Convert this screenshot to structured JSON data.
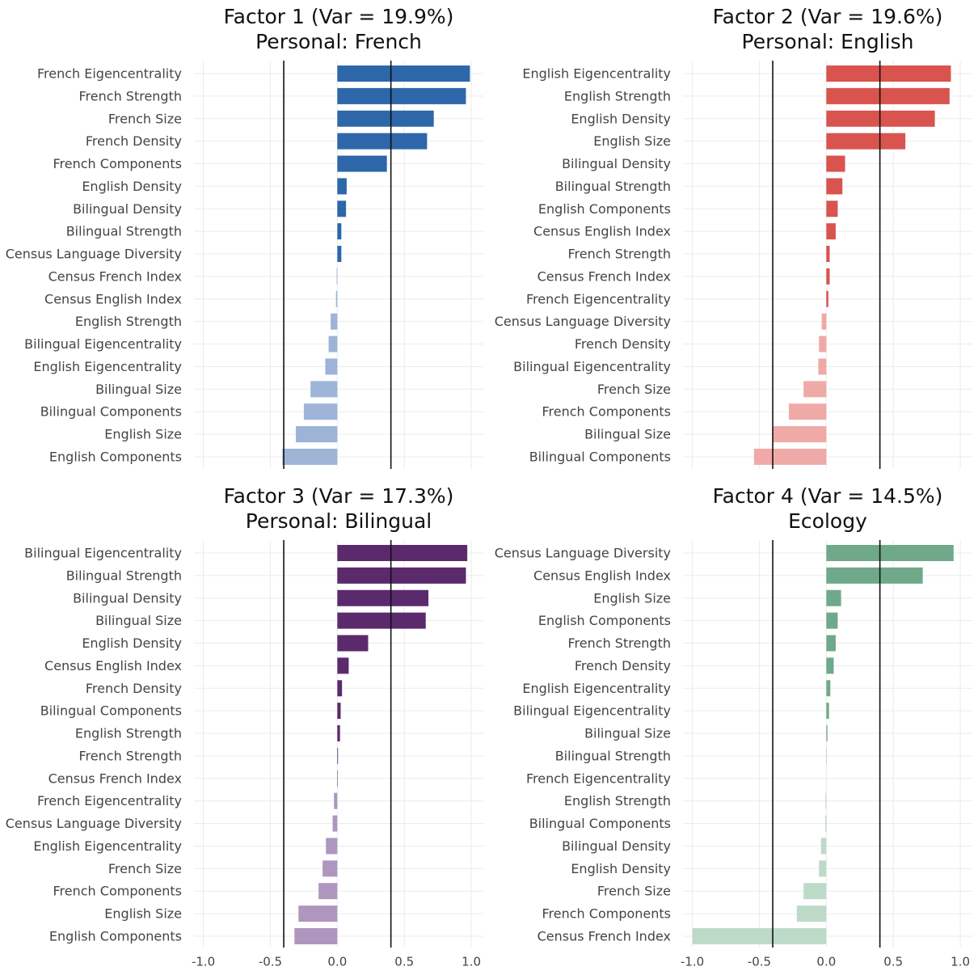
{
  "chart_data": [
    {
      "type": "bar",
      "orientation": "horizontal",
      "title": "Factor 1 (Var = 19.9%)",
      "subtitle": "Personal: French",
      "categories": [
        "French Eigencentrality",
        "French Strength",
        "French Size",
        "French Density",
        "French Components",
        "English Density",
        "Bilingual Density",
        "Bilingual Strength",
        "Census Language Diversity",
        "Census French Index",
        "Census English Index",
        "English Strength",
        "Bilingual Eigencentrality",
        "English Eigencentrality",
        "Bilingual Size",
        "Bilingual Components",
        "English Size",
        "English Components"
      ],
      "values": [
        0.99,
        0.96,
        0.72,
        0.67,
        0.37,
        0.07,
        0.065,
        0.03,
        0.03,
        -0.005,
        -0.01,
        -0.05,
        -0.065,
        -0.09,
        -0.2,
        -0.25,
        -0.31,
        -0.41
      ],
      "color": "#2e67a9",
      "negative_color": "#9db4d7",
      "reference_lines": [
        -0.4,
        0.4
      ],
      "xlim": [
        -1.07,
        1.09
      ],
      "xticks": [
        -1,
        -0.5,
        0,
        0.5,
        1
      ],
      "grid": true
    },
    {
      "type": "bar",
      "orientation": "horizontal",
      "title": "Factor 2 (Var = 19.6%)",
      "subtitle": "Personal: English",
      "categories": [
        "English Eigencentrality",
        "English Strength",
        "English Density",
        "English Size",
        "Bilingual Density",
        "Bilingual Strength",
        "English Components",
        "Census English Index",
        "French Strength",
        "Census French Index",
        "French Eigencentrality",
        "Census Language Diversity",
        "French Density",
        "Bilingual Eigencentrality",
        "French Size",
        "French Components",
        "Bilingual Size",
        "Bilingual Components"
      ],
      "values": [
        0.93,
        0.92,
        0.81,
        0.59,
        0.14,
        0.12,
        0.085,
        0.07,
        0.025,
        0.025,
        0.015,
        -0.035,
        -0.055,
        -0.06,
        -0.17,
        -0.28,
        -0.4,
        -0.54
      ],
      "color": "#d9534f",
      "negative_color": "#efaaa8",
      "reference_lines": [
        -0.4,
        0.4
      ],
      "xlim": [
        -1.07,
        1.09
      ],
      "xticks": [
        -1,
        -0.5,
        0,
        0.5,
        1
      ],
      "grid": true
    },
    {
      "type": "bar",
      "orientation": "horizontal",
      "title": "Factor 3 (Var = 17.3%)",
      "subtitle": "Personal: Bilingual",
      "categories": [
        "Bilingual Eigencentrality",
        "Bilingual Strength",
        "Bilingual Density",
        "Bilingual Size",
        "English Density",
        "Census English Index",
        "French Density",
        "Bilingual Components",
        "English Strength",
        "French Strength",
        "Census French Index",
        "French Eigencentrality",
        "Census Language Diversity",
        "English Eigencentrality",
        "French Size",
        "French Components",
        "English Size",
        "English Components"
      ],
      "values": [
        0.97,
        0.96,
        0.68,
        0.66,
        0.23,
        0.085,
        0.035,
        0.025,
        0.02,
        0.005,
        0.003,
        -0.025,
        -0.035,
        -0.085,
        -0.11,
        -0.14,
        -0.29,
        -0.32
      ],
      "color": "#5a2a6d",
      "negative_color": "#ae96be",
      "reference_lines": [
        -0.4,
        0.4
      ],
      "xlim": [
        -1.07,
        1.09
      ],
      "xticks": [
        {
          "value": -1,
          "label": "-1.0"
        },
        -0.5,
        {
          "value": 0,
          "label": "0.0"
        },
        0.5,
        {
          "value": 1,
          "label": "1.0"
        }
      ],
      "grid": true
    },
    {
      "type": "bar",
      "orientation": "horizontal",
      "title": "Factor 4 (Var = 14.5%)",
      "subtitle": "Ecology",
      "categories": [
        "Census Language Diversity",
        "Census English Index",
        "English Size",
        "English Components",
        "French Strength",
        "French Density",
        "English Eigencentrality",
        "Bilingual Eigencentrality",
        "Bilingual Size",
        "Bilingual Strength",
        "French Eigencentrality",
        "English Strength",
        "Bilingual Components",
        "Bilingual Density",
        "English Density",
        "French Size",
        "French Components",
        "Census French Index"
      ],
      "values": [
        0.95,
        0.72,
        0.11,
        0.085,
        0.07,
        0.055,
        0.03,
        0.02,
        0.008,
        0.002,
        -0.001,
        -0.006,
        -0.008,
        -0.04,
        -0.055,
        -0.17,
        -0.22,
        -1.0
      ],
      "color": "#6fa98a",
      "negative_color": "#bddac9",
      "reference_lines": [
        -0.4,
        0.4
      ],
      "xlim": [
        -1.07,
        1.09
      ],
      "xticks": [
        {
          "value": -1,
          "label": "-1.0"
        },
        -0.5,
        {
          "value": 0,
          "label": "0.0"
        },
        0.5,
        {
          "value": 1,
          "label": "1.0"
        }
      ],
      "grid": true
    }
  ]
}
